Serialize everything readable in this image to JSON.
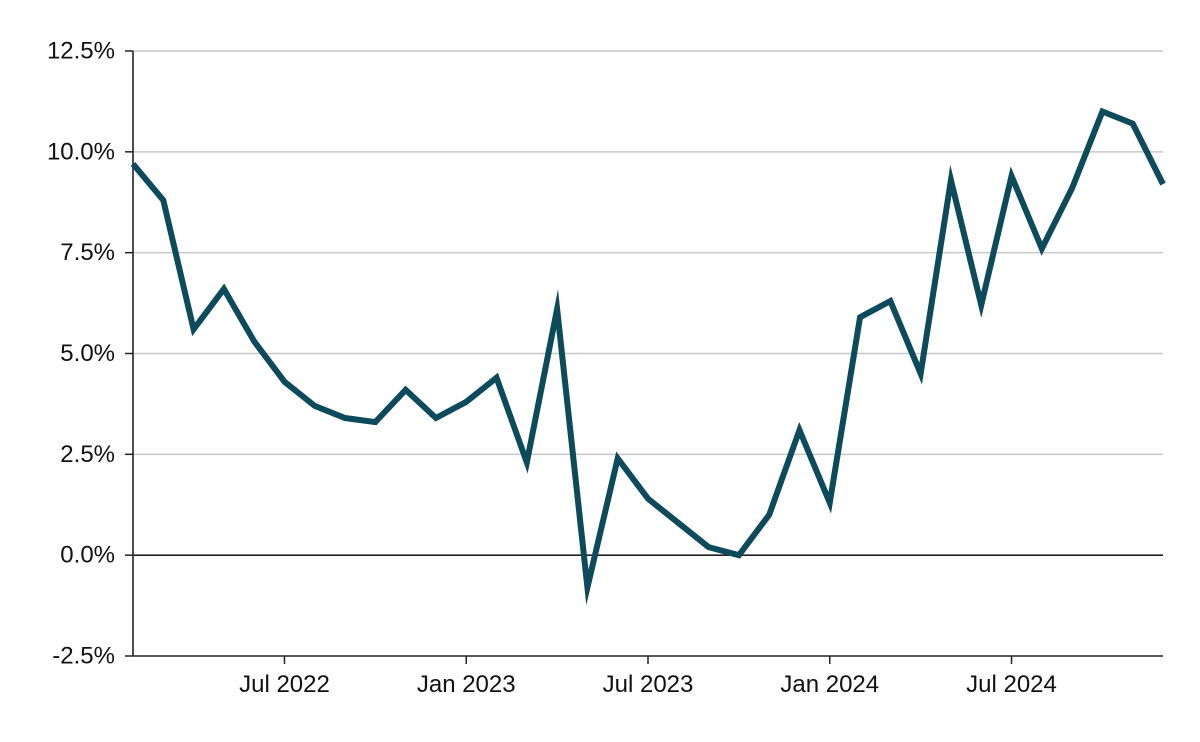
{
  "chart_data": {
    "type": "line",
    "title": "",
    "xlabel": "",
    "ylabel": "",
    "ylim": [
      -2.5,
      12.5
    ],
    "xlim": [
      "2022-02",
      "2024-12"
    ],
    "yticks": [
      -2.5,
      0.0,
      2.5,
      5.0,
      7.5,
      10.0,
      12.5
    ],
    "ytick_labels": [
      "-2.5%",
      "0.0%",
      "2.5%",
      "5.0%",
      "7.5%",
      "10.0%",
      "12.5%"
    ],
    "xticks": [
      "2022-07",
      "2023-01",
      "2023-07",
      "2024-01",
      "2024-07"
    ],
    "xtick_labels": [
      "Jul 2022",
      "Jan 2023",
      "Jul 2023",
      "Jan 2024",
      "Jul 2024"
    ],
    "grid": true,
    "line_color": "#0d4a5c",
    "series": [
      {
        "x": [
          "2022-02",
          "2022-03",
          "2022-04",
          "2022-05",
          "2022-06",
          "2022-07",
          "2022-08",
          "2022-09",
          "2022-10",
          "2022-11",
          "2022-12",
          "2023-01",
          "2023-02",
          "2023-03",
          "2023-04",
          "2023-05",
          "2023-06",
          "2023-07",
          "2023-08",
          "2023-09",
          "2023-10",
          "2023-11",
          "2023-12",
          "2024-01",
          "2024-02",
          "2024-03",
          "2024-04",
          "2024-05",
          "2024-06",
          "2024-07",
          "2024-08",
          "2024-09",
          "2024-10",
          "2024-11",
          "2024-12"
        ],
        "values": [
          9.7,
          8.8,
          5.6,
          6.6,
          5.3,
          4.3,
          3.7,
          3.4,
          3.3,
          4.1,
          3.4,
          3.8,
          4.4,
          2.3,
          6.1,
          -0.8,
          2.4,
          1.4,
          0.8,
          0.2,
          0.0,
          1.0,
          3.1,
          1.3,
          5.9,
          6.3,
          4.5,
          9.3,
          6.2,
          9.4,
          7.6,
          9.1,
          11.0,
          10.7,
          9.2
        ]
      }
    ]
  }
}
